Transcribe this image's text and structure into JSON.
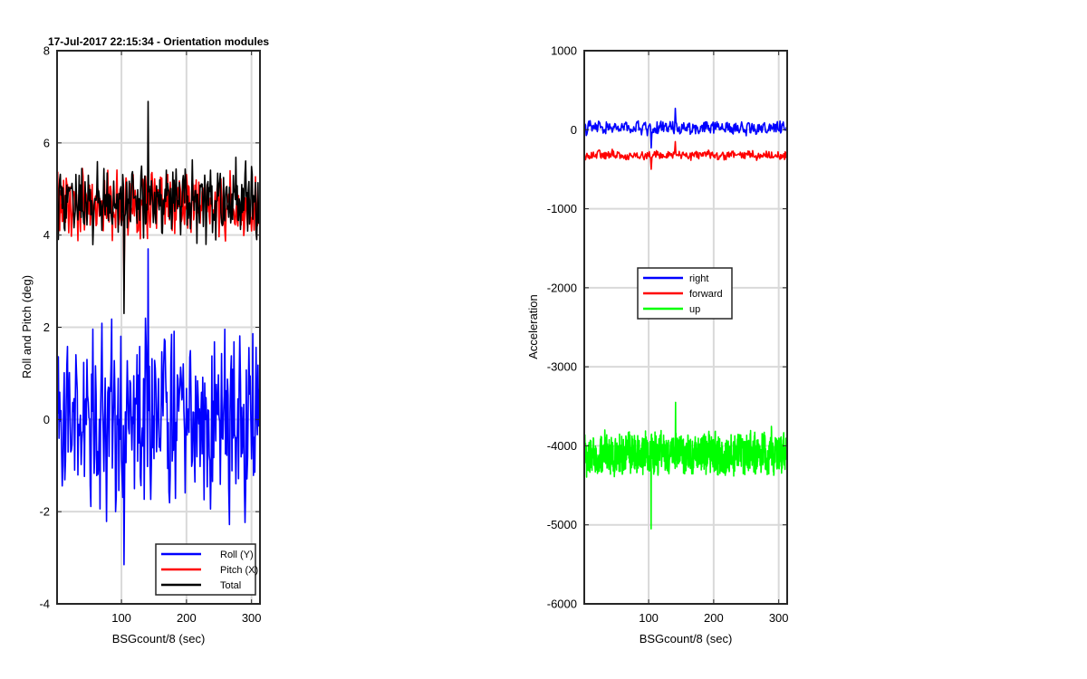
{
  "chart_data": [
    {
      "type": "line",
      "title": "17-Jul-2017 22:15:34 - Orientation modules",
      "xlabel": "BSGcount/8 (sec)",
      "ylabel": "Roll and Pitch (deg)",
      "xlim": [
        1,
        313
      ],
      "ylim": [
        -4,
        8
      ],
      "x_ticks": [
        100,
        200,
        300
      ],
      "y_ticks": [
        -4,
        -2,
        0,
        2,
        4,
        6,
        8
      ],
      "x_tick_labels": [
        "100",
        "200",
        "300"
      ],
      "y_tick_labels": [
        "-4",
        "-2",
        "0",
        "2",
        "4",
        "6",
        "8"
      ],
      "grid": true,
      "legend_position": "bottom-right",
      "series": [
        {
          "name": "Roll (Y)",
          "color": "#0000ff",
          "mean": 0.0,
          "amplitude": 2.1,
          "min": -3.15,
          "max": 3.7
        },
        {
          "name": "Pitch (X)",
          "color": "#ff0000",
          "mean": 4.65,
          "amplitude": 0.75,
          "min": 2.8,
          "max": 5.8
        },
        {
          "name": "Total",
          "color": "#000000",
          "mean": 4.75,
          "amplitude": 0.85,
          "min": 2.3,
          "max": 6.9
        }
      ]
    },
    {
      "type": "line",
      "title": "",
      "xlabel": "BSGcount/8 (sec)",
      "ylabel": "Acceleration",
      "xlim": [
        1,
        313
      ],
      "ylim": [
        -6000,
        1000
      ],
      "x_ticks": [
        100,
        200,
        300
      ],
      "y_ticks": [
        -6000,
        -5000,
        -4000,
        -3000,
        -2000,
        -1000,
        0,
        1000
      ],
      "x_tick_labels": [
        "100",
        "200",
        "300"
      ],
      "y_tick_labels": [
        "-6000",
        "-5000",
        "-4000",
        "-3000",
        "-2000",
        "-1000",
        "0",
        "1000"
      ],
      "grid": true,
      "legend_position": "center",
      "series": [
        {
          "name": "right",
          "color": "#0000ff",
          "mean": 20,
          "amplitude": 90,
          "min": -230,
          "max": 270
        },
        {
          "name": "forward",
          "color": "#ff0000",
          "mean": -320,
          "amplitude": 60,
          "min": -500,
          "max": -150
        },
        {
          "name": "up",
          "color": "#00ff00",
          "mean": -4100,
          "amplitude": 280,
          "min": -5050,
          "max": -3450
        }
      ]
    }
  ]
}
